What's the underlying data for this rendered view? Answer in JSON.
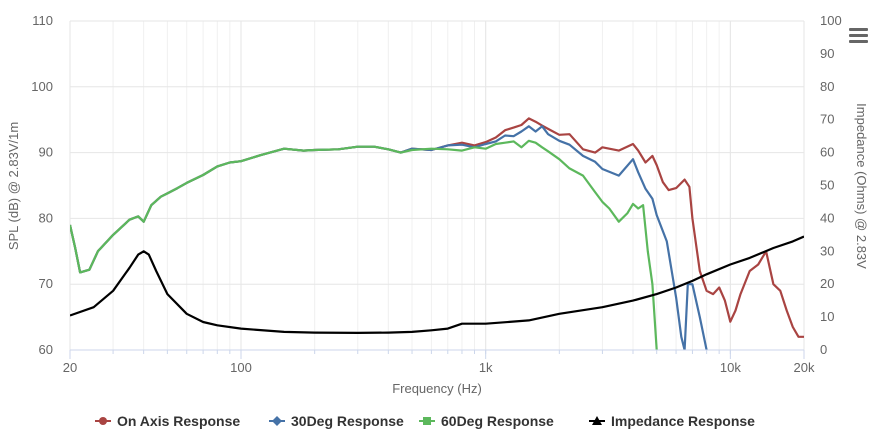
{
  "chart_data": {
    "type": "line",
    "title": "",
    "xlabel": "Frequency (Hz)",
    "ylabel": "SPL (dB) @ 2.83V/1m",
    "y2label": "Impedance (Ohms) @ 2.83V",
    "xscale": "log",
    "xlim": [
      20,
      20000
    ],
    "ylim": [
      60,
      110
    ],
    "y2lim": [
      0,
      100
    ],
    "grid": true,
    "legend_position": "bottom",
    "x_ticks": [
      {
        "value": 20,
        "label": "20"
      },
      {
        "value": 100,
        "label": "100"
      },
      {
        "value": 1000,
        "label": "1k"
      },
      {
        "value": 10000,
        "label": "10k"
      },
      {
        "value": 20000,
        "label": "20k"
      }
    ],
    "y_ticks": [
      "60",
      "70",
      "80",
      "90",
      "100",
      "110"
    ],
    "y2_ticks": [
      "0",
      "10",
      "20",
      "30",
      "40",
      "50",
      "60",
      "70",
      "80",
      "90",
      "100"
    ],
    "series": [
      {
        "name": "On Axis Response",
        "color": "#a94442",
        "marker": "circle",
        "axis": "left",
        "points": [
          [
            20,
            79
          ],
          [
            21,
            75.5
          ],
          [
            22,
            71.8
          ],
          [
            24,
            72.2
          ],
          [
            26,
            75
          ],
          [
            30,
            77.5
          ],
          [
            35,
            79.8
          ],
          [
            38,
            80.3
          ],
          [
            40,
            79.5
          ],
          [
            43,
            82
          ],
          [
            47,
            83.3
          ],
          [
            50,
            83.8
          ],
          [
            55,
            84.6
          ],
          [
            60,
            85.4
          ],
          [
            70,
            86.6
          ],
          [
            80,
            87.9
          ],
          [
            90,
            88.5
          ],
          [
            100,
            88.7
          ],
          [
            120,
            89.6
          ],
          [
            150,
            90.6
          ],
          [
            180,
            90.3
          ],
          [
            200,
            90.4
          ],
          [
            250,
            90.5
          ],
          [
            300,
            90.9
          ],
          [
            350,
            90.9
          ],
          [
            400,
            90.5
          ],
          [
            450,
            90
          ],
          [
            500,
            90.6
          ],
          [
            600,
            90.4
          ],
          [
            700,
            91.1
          ],
          [
            800,
            91.5
          ],
          [
            900,
            91.1
          ],
          [
            1000,
            91.6
          ],
          [
            1100,
            92.3
          ],
          [
            1200,
            93.4
          ],
          [
            1300,
            93.8
          ],
          [
            1400,
            94.2
          ],
          [
            1500,
            95.2
          ],
          [
            1600,
            94.7
          ],
          [
            1700,
            94.1
          ],
          [
            1800,
            93.6
          ],
          [
            2000,
            92.7
          ],
          [
            2200,
            92.8
          ],
          [
            2500,
            90.5
          ],
          [
            2800,
            90
          ],
          [
            3000,
            90.8
          ],
          [
            3500,
            90.3
          ],
          [
            4000,
            91.3
          ],
          [
            4200,
            90.3
          ],
          [
            4500,
            88.5
          ],
          [
            4800,
            89.5
          ],
          [
            5000,
            88.1
          ],
          [
            5300,
            85.5
          ],
          [
            5600,
            84.3
          ],
          [
            6000,
            84.6
          ],
          [
            6500,
            85.9
          ],
          [
            6800,
            84.8
          ],
          [
            7000,
            80
          ],
          [
            7500,
            72
          ],
          [
            8000,
            69
          ],
          [
            8500,
            68.5
          ],
          [
            9000,
            69.5
          ],
          [
            9500,
            67.5
          ],
          [
            10000,
            64.3
          ],
          [
            10500,
            66
          ],
          [
            11000,
            68.5
          ],
          [
            12000,
            72
          ],
          [
            13000,
            73
          ],
          [
            14000,
            75
          ],
          [
            15000,
            70
          ],
          [
            16000,
            69
          ],
          [
            17000,
            66
          ],
          [
            18000,
            63.5
          ],
          [
            19000,
            62
          ],
          [
            20000,
            62
          ]
        ]
      },
      {
        "name": "30Deg Response",
        "color": "#4572a7",
        "marker": "diamond",
        "axis": "left",
        "points": [
          [
            20,
            79
          ],
          [
            21,
            75.5
          ],
          [
            22,
            71.8
          ],
          [
            24,
            72.2
          ],
          [
            26,
            75
          ],
          [
            30,
            77.5
          ],
          [
            35,
            79.8
          ],
          [
            38,
            80.3
          ],
          [
            40,
            79.5
          ],
          [
            43,
            82
          ],
          [
            47,
            83.3
          ],
          [
            50,
            83.8
          ],
          [
            55,
            84.6
          ],
          [
            60,
            85.4
          ],
          [
            70,
            86.6
          ],
          [
            80,
            87.9
          ],
          [
            90,
            88.5
          ],
          [
            100,
            88.7
          ],
          [
            120,
            89.6
          ],
          [
            150,
            90.6
          ],
          [
            180,
            90.3
          ],
          [
            200,
            90.4
          ],
          [
            250,
            90.5
          ],
          [
            300,
            90.9
          ],
          [
            350,
            90.9
          ],
          [
            400,
            90.5
          ],
          [
            450,
            90
          ],
          [
            500,
            90.6
          ],
          [
            600,
            90.4
          ],
          [
            700,
            91.1
          ],
          [
            800,
            91.2
          ],
          [
            900,
            90.8
          ],
          [
            1000,
            91.3
          ],
          [
            1100,
            91.7
          ],
          [
            1200,
            92.6
          ],
          [
            1300,
            92.5
          ],
          [
            1400,
            93.2
          ],
          [
            1500,
            94
          ],
          [
            1600,
            93.2
          ],
          [
            1700,
            94
          ],
          [
            1800,
            92.8
          ],
          [
            2000,
            91.8
          ],
          [
            2200,
            91.2
          ],
          [
            2500,
            89.5
          ],
          [
            2800,
            88.6
          ],
          [
            3000,
            87.5
          ],
          [
            3500,
            86.5
          ],
          [
            4000,
            89
          ],
          [
            4200,
            87
          ],
          [
            4500,
            84.5
          ],
          [
            4800,
            83
          ],
          [
            5000,
            80.5
          ],
          [
            5500,
            76.5
          ],
          [
            6000,
            68
          ],
          [
            6300,
            62
          ],
          [
            6500,
            60
          ],
          [
            6700,
            70
          ],
          [
            7000,
            70
          ],
          [
            7500,
            65
          ],
          [
            8000,
            60
          ]
        ]
      },
      {
        "name": "60Deg Response",
        "color": "#5cb85c",
        "marker": "square",
        "axis": "left",
        "points": [
          [
            20,
            79
          ],
          [
            21,
            75.5
          ],
          [
            22,
            71.8
          ],
          [
            24,
            72.2
          ],
          [
            26,
            75
          ],
          [
            30,
            77.5
          ],
          [
            35,
            79.8
          ],
          [
            38,
            80.3
          ],
          [
            40,
            79.5
          ],
          [
            43,
            82
          ],
          [
            47,
            83.3
          ],
          [
            50,
            83.8
          ],
          [
            55,
            84.6
          ],
          [
            60,
            85.4
          ],
          [
            70,
            86.6
          ],
          [
            80,
            87.9
          ],
          [
            90,
            88.5
          ],
          [
            100,
            88.7
          ],
          [
            120,
            89.6
          ],
          [
            150,
            90.6
          ],
          [
            180,
            90.3
          ],
          [
            200,
            90.4
          ],
          [
            250,
            90.5
          ],
          [
            300,
            90.9
          ],
          [
            350,
            90.9
          ],
          [
            400,
            90.5
          ],
          [
            450,
            90
          ],
          [
            500,
            90.4
          ],
          [
            600,
            90.6
          ],
          [
            700,
            90.5
          ],
          [
            800,
            90.3
          ],
          [
            900,
            90.8
          ],
          [
            1000,
            90.6
          ],
          [
            1100,
            91.3
          ],
          [
            1200,
            91.5
          ],
          [
            1300,
            91.7
          ],
          [
            1400,
            90.8
          ],
          [
            1500,
            91.8
          ],
          [
            1600,
            91.5
          ],
          [
            1700,
            90.8
          ],
          [
            1800,
            90.2
          ],
          [
            2000,
            89
          ],
          [
            2200,
            87.6
          ],
          [
            2500,
            86.5
          ],
          [
            2800,
            84
          ],
          [
            3000,
            82.5
          ],
          [
            3200,
            81.5
          ],
          [
            3500,
            79.5
          ],
          [
            3800,
            80.8
          ],
          [
            4000,
            82.2
          ],
          [
            4200,
            81.5
          ],
          [
            4400,
            82
          ],
          [
            4600,
            75
          ],
          [
            4800,
            70
          ],
          [
            5000,
            60
          ]
        ]
      },
      {
        "name": "Impedance Response",
        "color": "#000000",
        "marker": "triangle",
        "axis": "right",
        "points": [
          [
            20,
            10.5
          ],
          [
            25,
            13
          ],
          [
            30,
            18
          ],
          [
            35,
            25
          ],
          [
            38,
            29
          ],
          [
            40,
            30
          ],
          [
            42,
            29
          ],
          [
            45,
            24
          ],
          [
            50,
            17
          ],
          [
            60,
            11
          ],
          [
            70,
            8.5
          ],
          [
            80,
            7.5
          ],
          [
            100,
            6.5
          ],
          [
            150,
            5.5
          ],
          [
            200,
            5.3
          ],
          [
            300,
            5.2
          ],
          [
            400,
            5.3
          ],
          [
            500,
            5.5
          ],
          [
            600,
            6
          ],
          [
            700,
            6.5
          ],
          [
            800,
            8
          ],
          [
            900,
            8
          ],
          [
            1000,
            8
          ],
          [
            1500,
            9
          ],
          [
            2000,
            11
          ],
          [
            3000,
            13
          ],
          [
            4000,
            15
          ],
          [
            5000,
            17
          ],
          [
            6000,
            19
          ],
          [
            7000,
            21
          ],
          [
            8000,
            23
          ],
          [
            10000,
            26
          ],
          [
            12000,
            28
          ],
          [
            15000,
            31
          ],
          [
            18000,
            33
          ],
          [
            20000,
            34.5
          ]
        ]
      }
    ]
  }
}
